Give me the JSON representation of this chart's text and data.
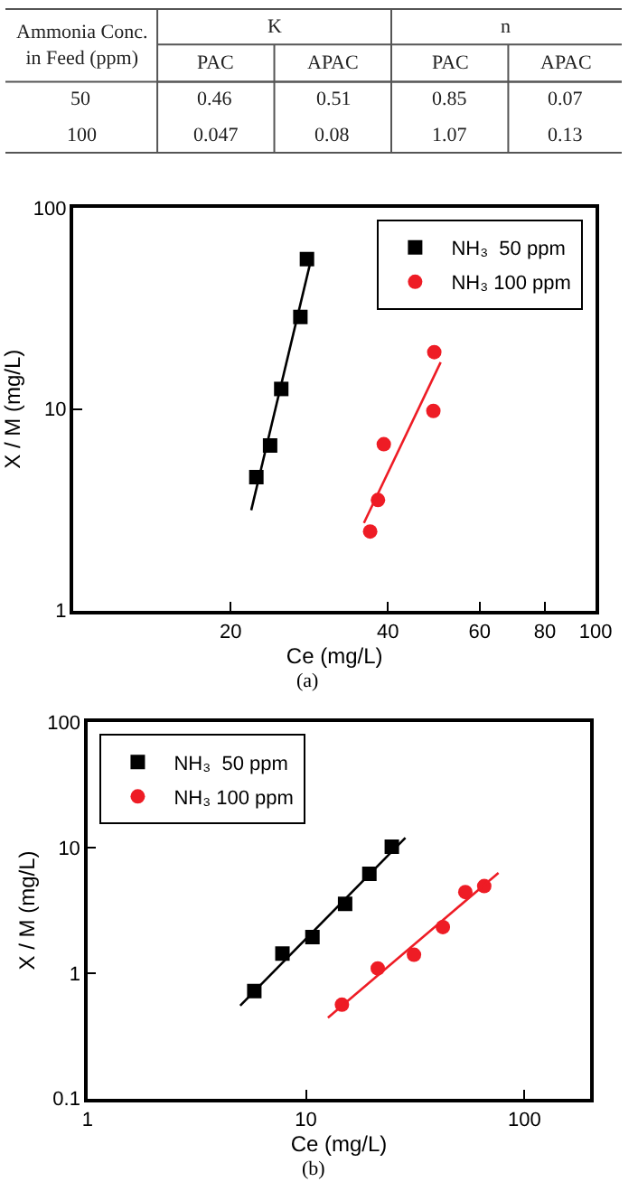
{
  "chart_data": [
    {
      "type": "other",
      "annotations": [
        "Ammonia Conc.\nin Feed (ppm)",
        "K",
        "n",
        "PAC",
        "APAC",
        "PAC",
        "APAC",
        "50",
        "0.46",
        "0.51",
        "0.85",
        "0.07",
        "100",
        "0.047",
        "0.08",
        "1.07",
        "0.13"
      ]
    },
    {
      "type": "scatter",
      "xlabel": "Ce (mg/L)",
      "ylabel": "X / M (mg/L)",
      "log": "xy",
      "xlim": [
        10,
        100
      ],
      "ylim": [
        1,
        100
      ],
      "xticks": [
        20,
        40,
        60,
        80,
        100
      ],
      "yticks": [
        1,
        10,
        100
      ],
      "legend": "top right",
      "annotations": [
        "(a)"
      ],
      "series": [
        {
          "name": "NH₃  50 ppm",
          "color": "#000000",
          "marker": "square",
          "x": [
            22.4,
            23.8,
            25.0,
            27.2,
            28.0
          ],
          "values": [
            4.6,
            6.6,
            12.6,
            28.7,
            55.6
          ]
        },
        {
          "name": "NH₃ 100 ppm",
          "color": "#ee1c25",
          "marker": "circle",
          "x": [
            37.0,
            38.3,
            39.3,
            48.9,
            49.1
          ],
          "values": [
            2.47,
            3.54,
            6.7,
            9.8,
            19.2
          ]
        },
        {
          "type": "line",
          "color": "#000000",
          "marker": "none",
          "x": [
            21.9,
            28.4
          ],
          "values": [
            3.15,
            53
          ]
        },
        {
          "type": "line",
          "color": "#ee1c25",
          "marker": "none",
          "x": [
            36.0,
            50.5
          ],
          "values": [
            2.72,
            17.1
          ]
        }
      ]
    },
    {
      "type": "scatter",
      "xlabel": "Ce (mg/L)",
      "ylabel": "X / M (mg/L)",
      "log": "xy",
      "xlim": [
        1,
        200
      ],
      "ylim": [
        0.1,
        100
      ],
      "xticks": [
        1,
        10,
        100
      ],
      "yticks": [
        0.1,
        1,
        10,
        100
      ],
      "legend": "top left",
      "annotations": [
        "(b)"
      ],
      "series": [
        {
          "name": "NH₃  50 ppm",
          "color": "#000000",
          "marker": "square",
          "x": [
            5.8,
            7.8,
            10.7,
            15.1,
            19.5,
            24.7
          ],
          "values": [
            0.72,
            1.43,
            1.94,
            3.56,
            6.2,
            10.2
          ]
        },
        {
          "name": "NH₃ 100 ppm",
          "color": "#ee1c25",
          "marker": "circle",
          "x": [
            14.6,
            21.3,
            31.2,
            42.3,
            53.6,
            65.4
          ],
          "values": [
            0.56,
            1.09,
            1.4,
            2.33,
            4.43,
            4.94
          ]
        },
        {
          "type": "line",
          "color": "#000000",
          "marker": "none",
          "x": [
            5.0,
            28.5
          ],
          "values": [
            0.55,
            12.0
          ]
        },
        {
          "type": "line",
          "color": "#ee1c25",
          "marker": "none",
          "x": [
            12.6,
            76
          ],
          "values": [
            0.44,
            6.3
          ]
        }
      ]
    }
  ]
}
